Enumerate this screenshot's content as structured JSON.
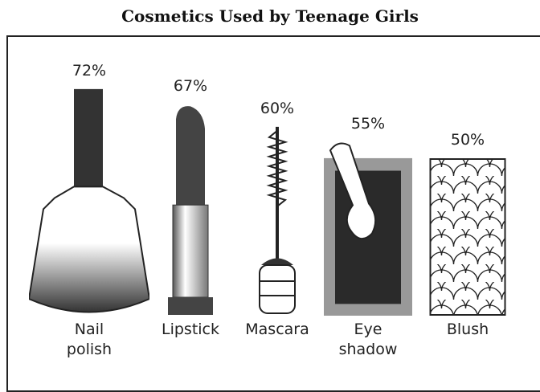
{
  "chart_data": {
    "type": "pictograph",
    "title": "Cosmetics Used by Teenage Girls",
    "categories": [
      "Nail polish",
      "Lipstick",
      "Mascara",
      "Eye shadow",
      "Blush"
    ],
    "values": [
      72,
      67,
      60,
      55,
      50
    ],
    "value_labels": [
      "72%",
      "67%",
      "60%",
      "55%",
      "50%"
    ]
  }
}
